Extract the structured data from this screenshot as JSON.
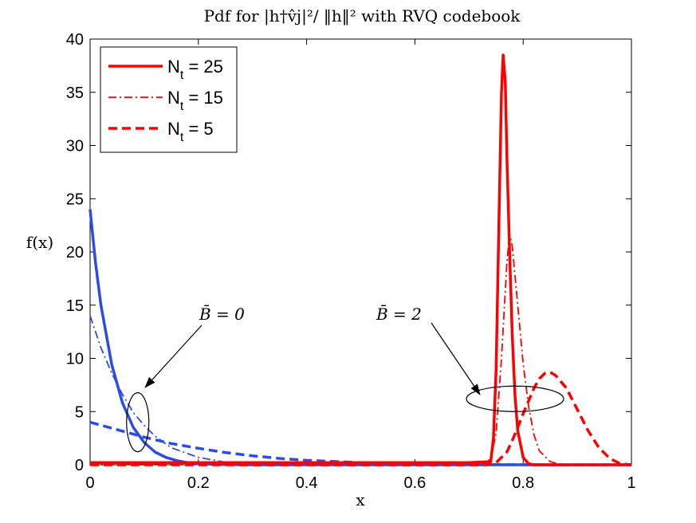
{
  "chart_data": {
    "type": "line",
    "title": "Pdf for |h†v̂j|²/ ‖h‖² with RVQ codebook",
    "xlabel": "x",
    "ylabel": "f(x)",
    "xlim": [
      0,
      1
    ],
    "ylim": [
      0,
      40
    ],
    "xticks": [
      0,
      0.2,
      0.4,
      0.6,
      0.8,
      1
    ],
    "xtick_labels": [
      "0",
      "0.2",
      "0.4",
      "0.6",
      "0.8",
      "1"
    ],
    "yticks": [
      0,
      5,
      10,
      15,
      20,
      25,
      30,
      35,
      40
    ],
    "ytick_labels": [
      "0",
      "5",
      "10",
      "15",
      "20",
      "25",
      "30",
      "35",
      "40"
    ],
    "grid": false,
    "legend_position": "top-left",
    "legend": [
      {
        "label": "N",
        "subscript": "t",
        "value": " = 25",
        "style": "solid"
      },
      {
        "label": "N",
        "subscript": "t",
        "value": " = 15",
        "style": "dashdot"
      },
      {
        "label": "N",
        "subscript": "t",
        "value": " = 5",
        "style": "dashed"
      }
    ],
    "colors": {
      "red": "#ff0000",
      "blue": "#2b4ce6"
    },
    "annotations": [
      {
        "text": "B̄ = 0",
        "x": 0.205,
        "y": 14,
        "ellipse_x": 0.088,
        "ellipse_y": 4
      },
      {
        "text": "B̄ = 2",
        "x": 0.585,
        "y": 14,
        "ellipse_x": 0.785,
        "ellipse_y": 6.2
      }
    ],
    "series": [
      {
        "group": "B̄ = 0",
        "color": "#2b4ce6",
        "style": "solid",
        "nt": 25,
        "x": [
          0,
          0.01,
          0.02,
          0.04,
          0.06,
          0.08,
          0.1,
          0.12,
          0.14,
          0.16,
          0.18,
          0.2,
          0.25,
          0.3,
          1.0
        ],
        "y": [
          24,
          19.0,
          15.0,
          9.4,
          5.8,
          3.5,
          2.1,
          1.2,
          0.7,
          0.4,
          0.2,
          0.1,
          0.02,
          0,
          0
        ]
      },
      {
        "group": "B̄ = 0",
        "color": "#2b4ce6",
        "style": "dashdot",
        "nt": 15,
        "x": [
          0,
          0.02,
          0.04,
          0.06,
          0.08,
          0.1,
          0.12,
          0.15,
          0.2,
          0.25,
          0.3,
          0.4,
          1.0
        ],
        "y": [
          14,
          11.0,
          8.6,
          6.6,
          4.9,
          3.7,
          2.7,
          1.6,
          0.7,
          0.25,
          0.1,
          0.02,
          0
        ]
      },
      {
        "group": "B̄ = 0",
        "color": "#2b4ce6",
        "style": "dashed",
        "nt": 5,
        "x": [
          0,
          0.05,
          0.1,
          0.15,
          0.2,
          0.25,
          0.3,
          0.35,
          0.4,
          0.5,
          0.6,
          0.7,
          0.8,
          0.9,
          1.0
        ],
        "y": [
          4,
          3.3,
          2.6,
          2.0,
          1.55,
          1.15,
          0.85,
          0.6,
          0.42,
          0.2,
          0.08,
          0.03,
          0.01,
          0,
          0
        ]
      },
      {
        "group": "B̄ = 2",
        "color": "#ff0000",
        "style": "solid",
        "nt": 25,
        "x": [
          0,
          0.7,
          0.74,
          0.745,
          0.75,
          0.755,
          0.76,
          0.763,
          0.767,
          0.77,
          0.775,
          0.78,
          0.785,
          0.79,
          0.8,
          0.81,
          0.82,
          1.0
        ],
        "y": [
          0.2,
          0.2,
          0.3,
          2.5,
          9,
          22,
          35,
          38.5,
          36,
          29,
          20,
          12,
          6.5,
          3.2,
          0.7,
          0.1,
          0,
          0
        ]
      },
      {
        "group": "B̄ = 2",
        "color": "#ff0000",
        "style": "dashdot",
        "nt": 15,
        "x": [
          0,
          0.72,
          0.74,
          0.75,
          0.76,
          0.77,
          0.775,
          0.78,
          0.79,
          0.8,
          0.81,
          0.82,
          0.83,
          0.85,
          0.87,
          1.0
        ],
        "y": [
          0.1,
          0.1,
          0.5,
          3.0,
          10,
          19,
          21.7,
          20.5,
          15,
          9.5,
          5.5,
          2.8,
          1.3,
          0.3,
          0,
          0
        ]
      },
      {
        "group": "B̄ = 2",
        "color": "#ff0000",
        "style": "dashed",
        "nt": 5,
        "x": [
          0,
          0.73,
          0.75,
          0.77,
          0.78,
          0.79,
          0.8,
          0.81,
          0.82,
          0.83,
          0.84,
          0.85,
          0.86,
          0.88,
          0.9,
          0.92,
          0.94,
          0.96,
          0.98,
          1.0
        ],
        "y": [
          0,
          0,
          0.2,
          1.2,
          2.3,
          3.5,
          4.8,
          6.0,
          7.2,
          8.1,
          8.6,
          8.7,
          8.4,
          7.2,
          5.2,
          3.2,
          1.6,
          0.6,
          0.1,
          0
        ]
      }
    ]
  }
}
